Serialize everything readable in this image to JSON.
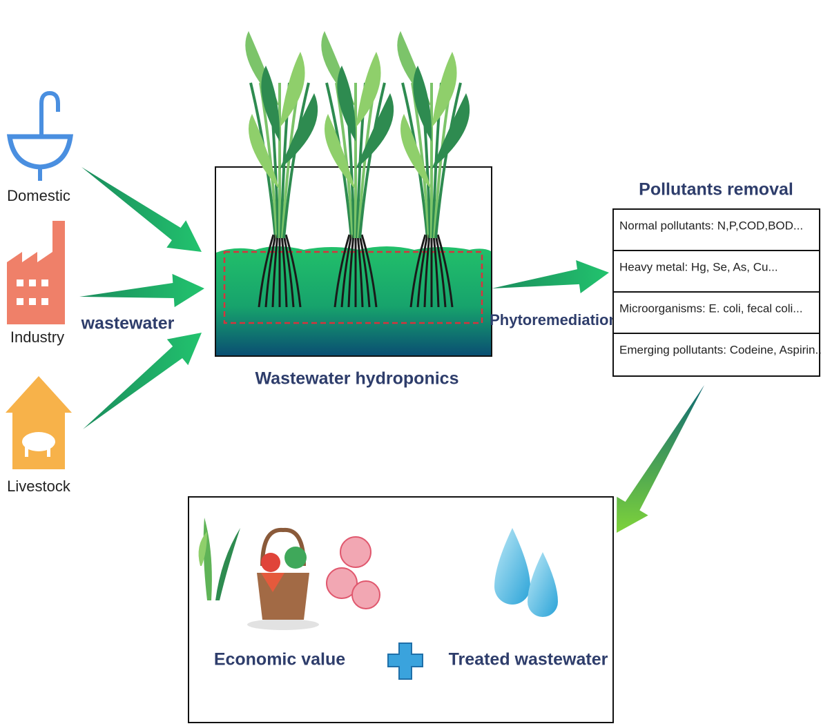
{
  "sources": [
    {
      "label": "Domestic"
    },
    {
      "label": "Industry"
    },
    {
      "label": "Livestock"
    }
  ],
  "flow_label": "wastewater",
  "hydroponics": {
    "label": "Wastewater hydroponics"
  },
  "process_label": "Phytoremediation",
  "pollutants": {
    "title": "Pollutants removal",
    "rows": [
      "Normal pollutants: N,P,COD,BOD...",
      "Heavy metal: Hg, Se, As, Cu...",
      "Microorganisms: E. coli,  fecal coli...",
      "Emerging pollutants: Codeine, Aspirin..."
    ]
  },
  "outcomes": {
    "economic": "Economic value",
    "water": "Treated wastewater"
  }
}
